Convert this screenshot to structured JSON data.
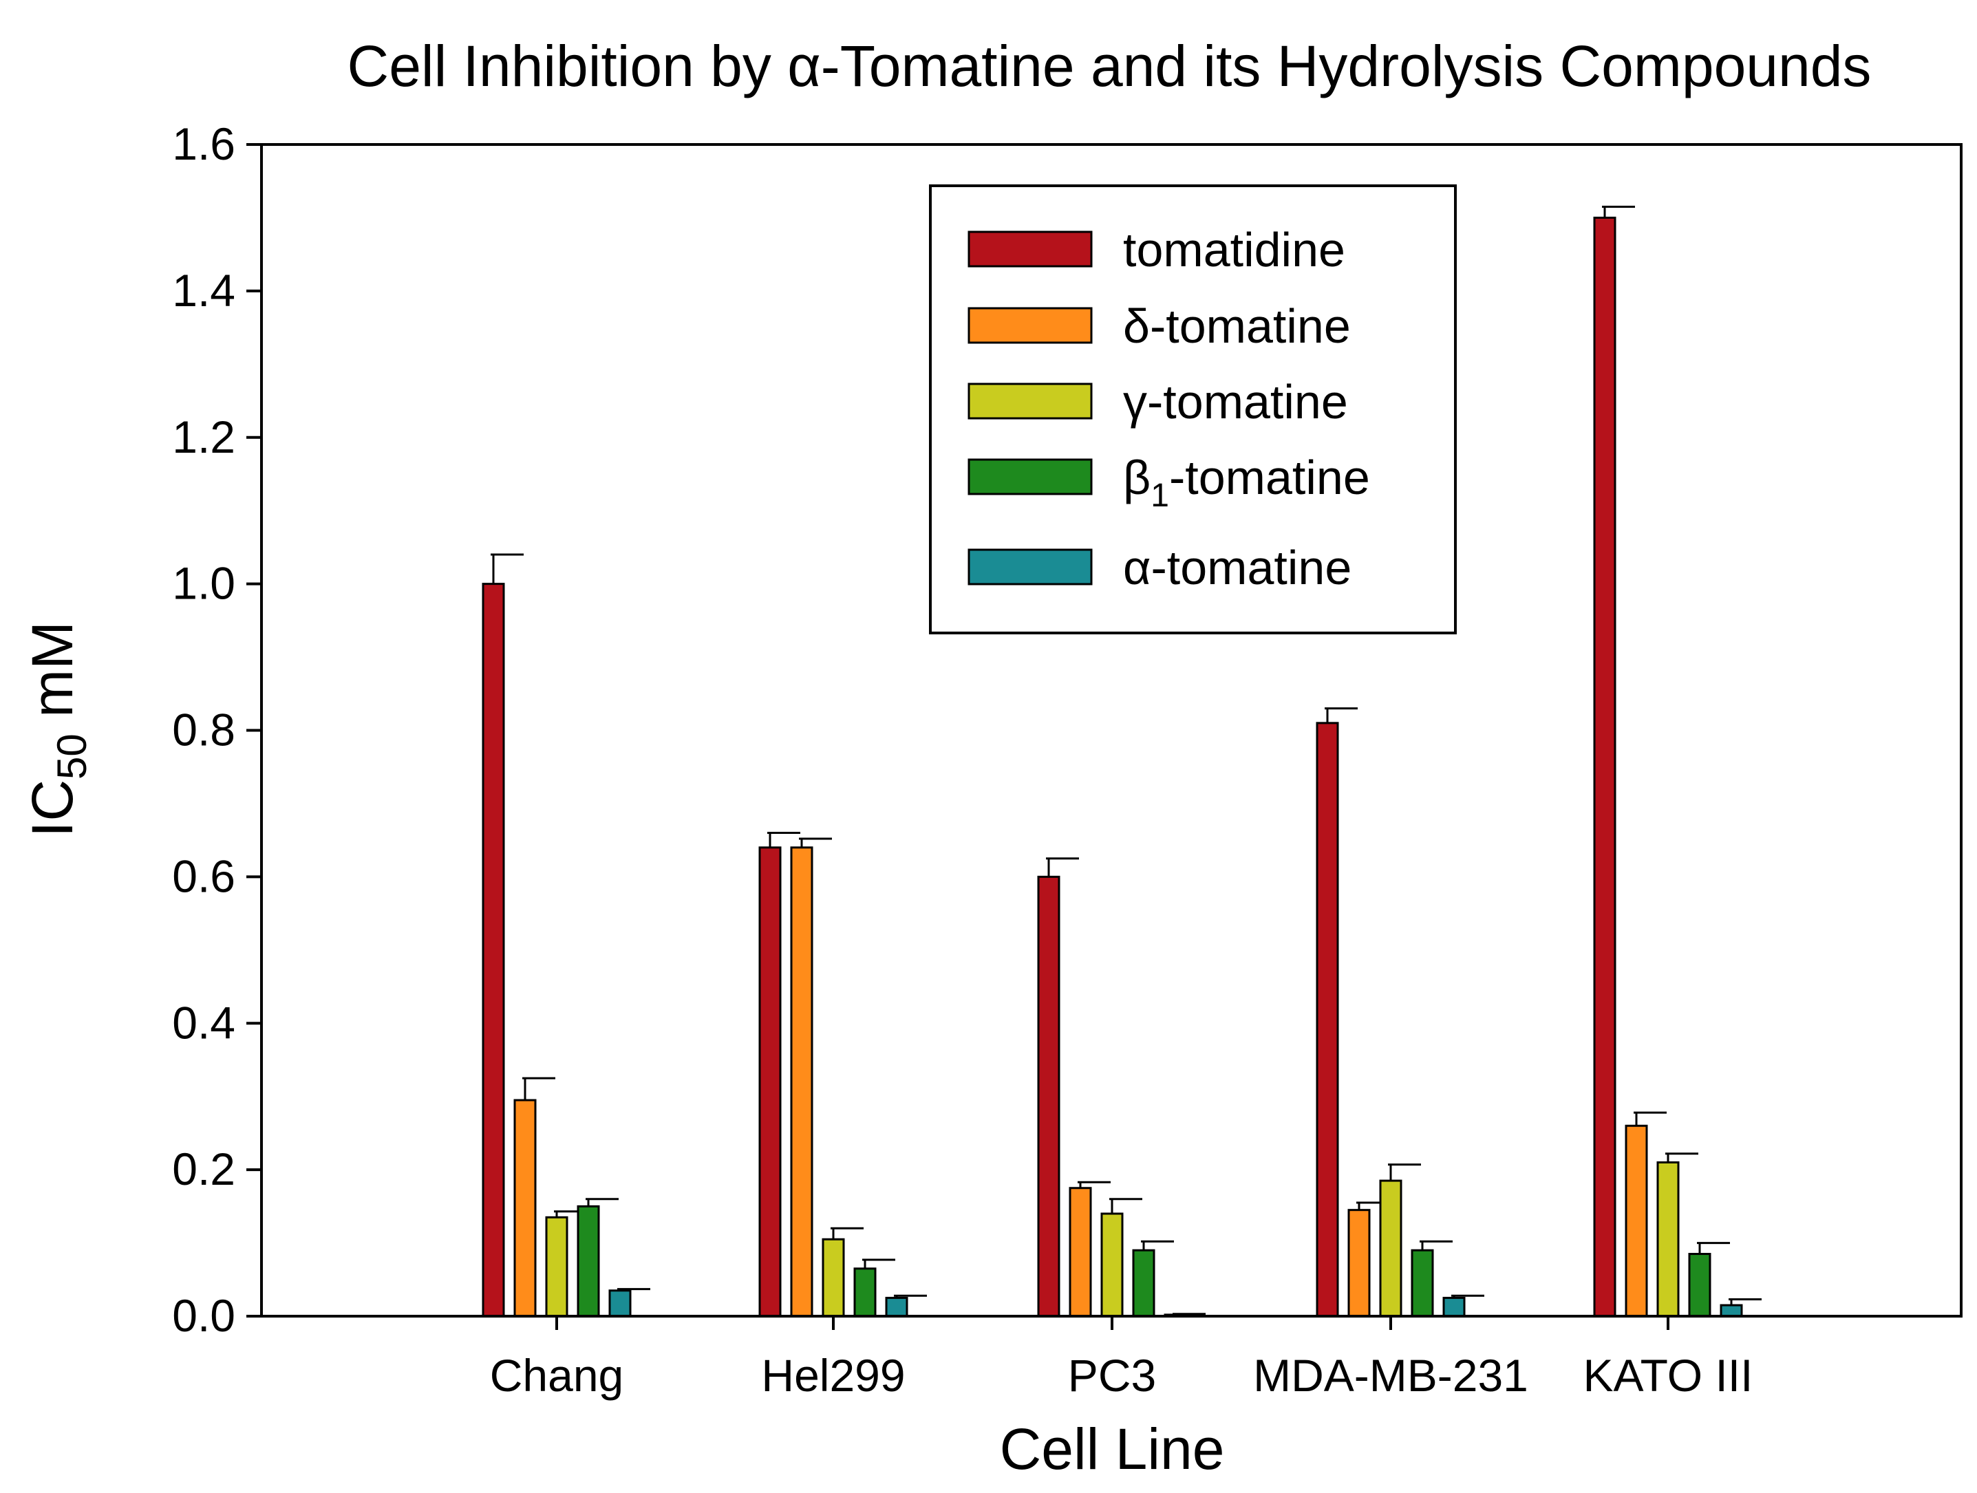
{
  "chart_data": {
    "type": "bar",
    "title": "Cell Inhibition by α-Tomatine and its Hydrolysis Compounds",
    "xlabel": "Cell Line",
    "ylabel": {
      "main": "IC",
      "sub": "50",
      "suffix": " mM"
    },
    "ylim": [
      0,
      1.6
    ],
    "yticks": [
      "0.0",
      "0.2",
      "0.4",
      "0.6",
      "0.8",
      "1.0",
      "1.2",
      "1.4",
      "1.6"
    ],
    "grid": false,
    "legend_position": "top-center",
    "categories": [
      "Chang",
      "Hel299",
      "PC3",
      "MDA-MB-231",
      "KATO III"
    ],
    "series": [
      {
        "name": "tomatidine",
        "label_main": "tomatidine",
        "label_sub": "",
        "label_suffix": "",
        "color": "#b5121b",
        "values": [
          1.0,
          0.64,
          0.6,
          0.81,
          1.5
        ],
        "errors": [
          0.04,
          0.02,
          0.025,
          0.02,
          0.015
        ]
      },
      {
        "name": "δ-tomatine",
        "label_main": "δ-tomatine",
        "label_sub": "",
        "label_suffix": "",
        "color": "#ff8c1a",
        "values": [
          0.295,
          0.64,
          0.175,
          0.145,
          0.26
        ],
        "errors": [
          0.03,
          0.012,
          0.008,
          0.01,
          0.018
        ]
      },
      {
        "name": "γ-tomatine",
        "label_main": "γ-tomatine",
        "label_sub": "",
        "label_suffix": "",
        "color": "#c9cc1f",
        "values": [
          0.135,
          0.105,
          0.14,
          0.185,
          0.21
        ],
        "errors": [
          0.008,
          0.015,
          0.02,
          0.022,
          0.012
        ]
      },
      {
        "name": "β1-tomatine",
        "label_main": "β",
        "label_sub": "1",
        "label_suffix": "-tomatine",
        "color": "#1e8a1e",
        "values": [
          0.15,
          0.065,
          0.09,
          0.09,
          0.085
        ],
        "errors": [
          0.01,
          0.012,
          0.012,
          0.012,
          0.015
        ]
      },
      {
        "name": "α-tomatine",
        "label_main": "α-tomatine",
        "label_sub": "",
        "label_suffix": "",
        "color": "#1a8c94",
        "values": [
          0.035,
          0.025,
          0.002,
          0.025,
          0.015
        ],
        "errors": [
          0.002,
          0.003,
          0.001,
          0.003,
          0.008
        ]
      }
    ]
  }
}
